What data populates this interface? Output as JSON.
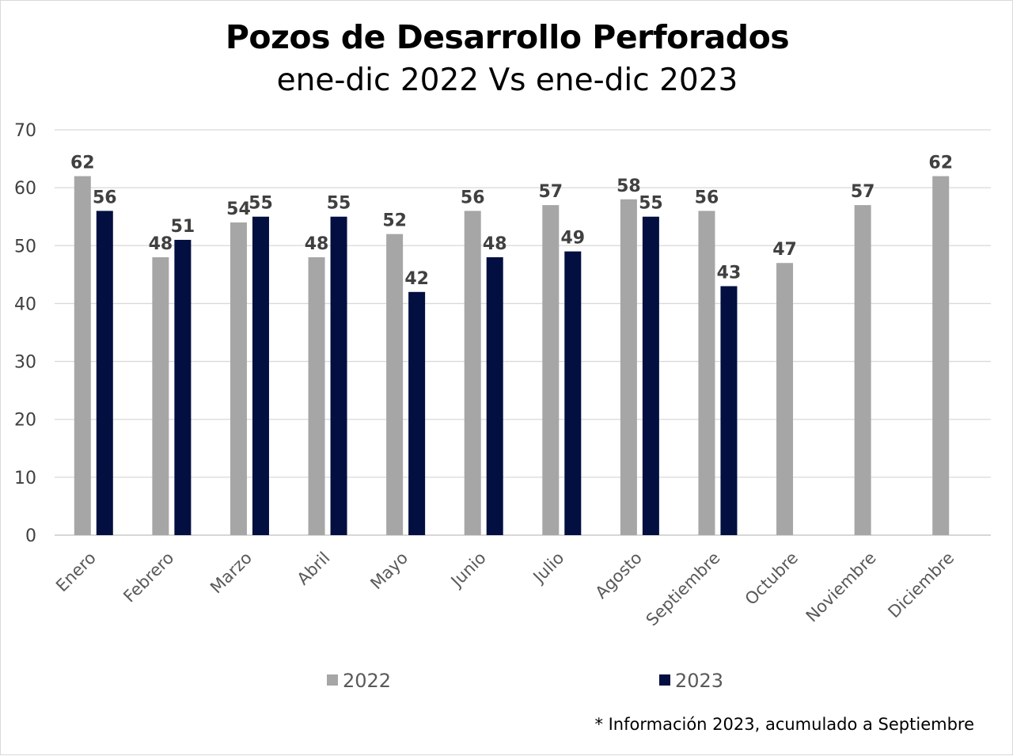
{
  "chart_data": {
    "type": "bar",
    "title": "Pozos de Desarrollo Perforados",
    "subtitle": "ene-dic 2022 Vs ene-dic 2023",
    "categories": [
      "Enero",
      "Febrero",
      "Marzo",
      "Abril",
      "Mayo",
      "Junio",
      "Julio",
      "Agosto",
      "Septiembre",
      "Octubre",
      "Noviembre",
      "Diciembre"
    ],
    "series": [
      {
        "name": "2022",
        "color": "#a6a6a6",
        "values": [
          62,
          48,
          54,
          48,
          52,
          56,
          57,
          58,
          56,
          47,
          57,
          62
        ]
      },
      {
        "name": "2023",
        "color": "#020f40",
        "values": [
          56,
          51,
          55,
          55,
          42,
          48,
          49,
          55,
          43,
          null,
          null,
          null
        ]
      }
    ],
    "ylim": [
      0,
      70
    ],
    "yticks": [
      0,
      10,
      20,
      30,
      40,
      50,
      60,
      70
    ],
    "grid": true,
    "legend_position": "bottom",
    "footnote": "* Información 2023, acumulado a Septiembre"
  }
}
